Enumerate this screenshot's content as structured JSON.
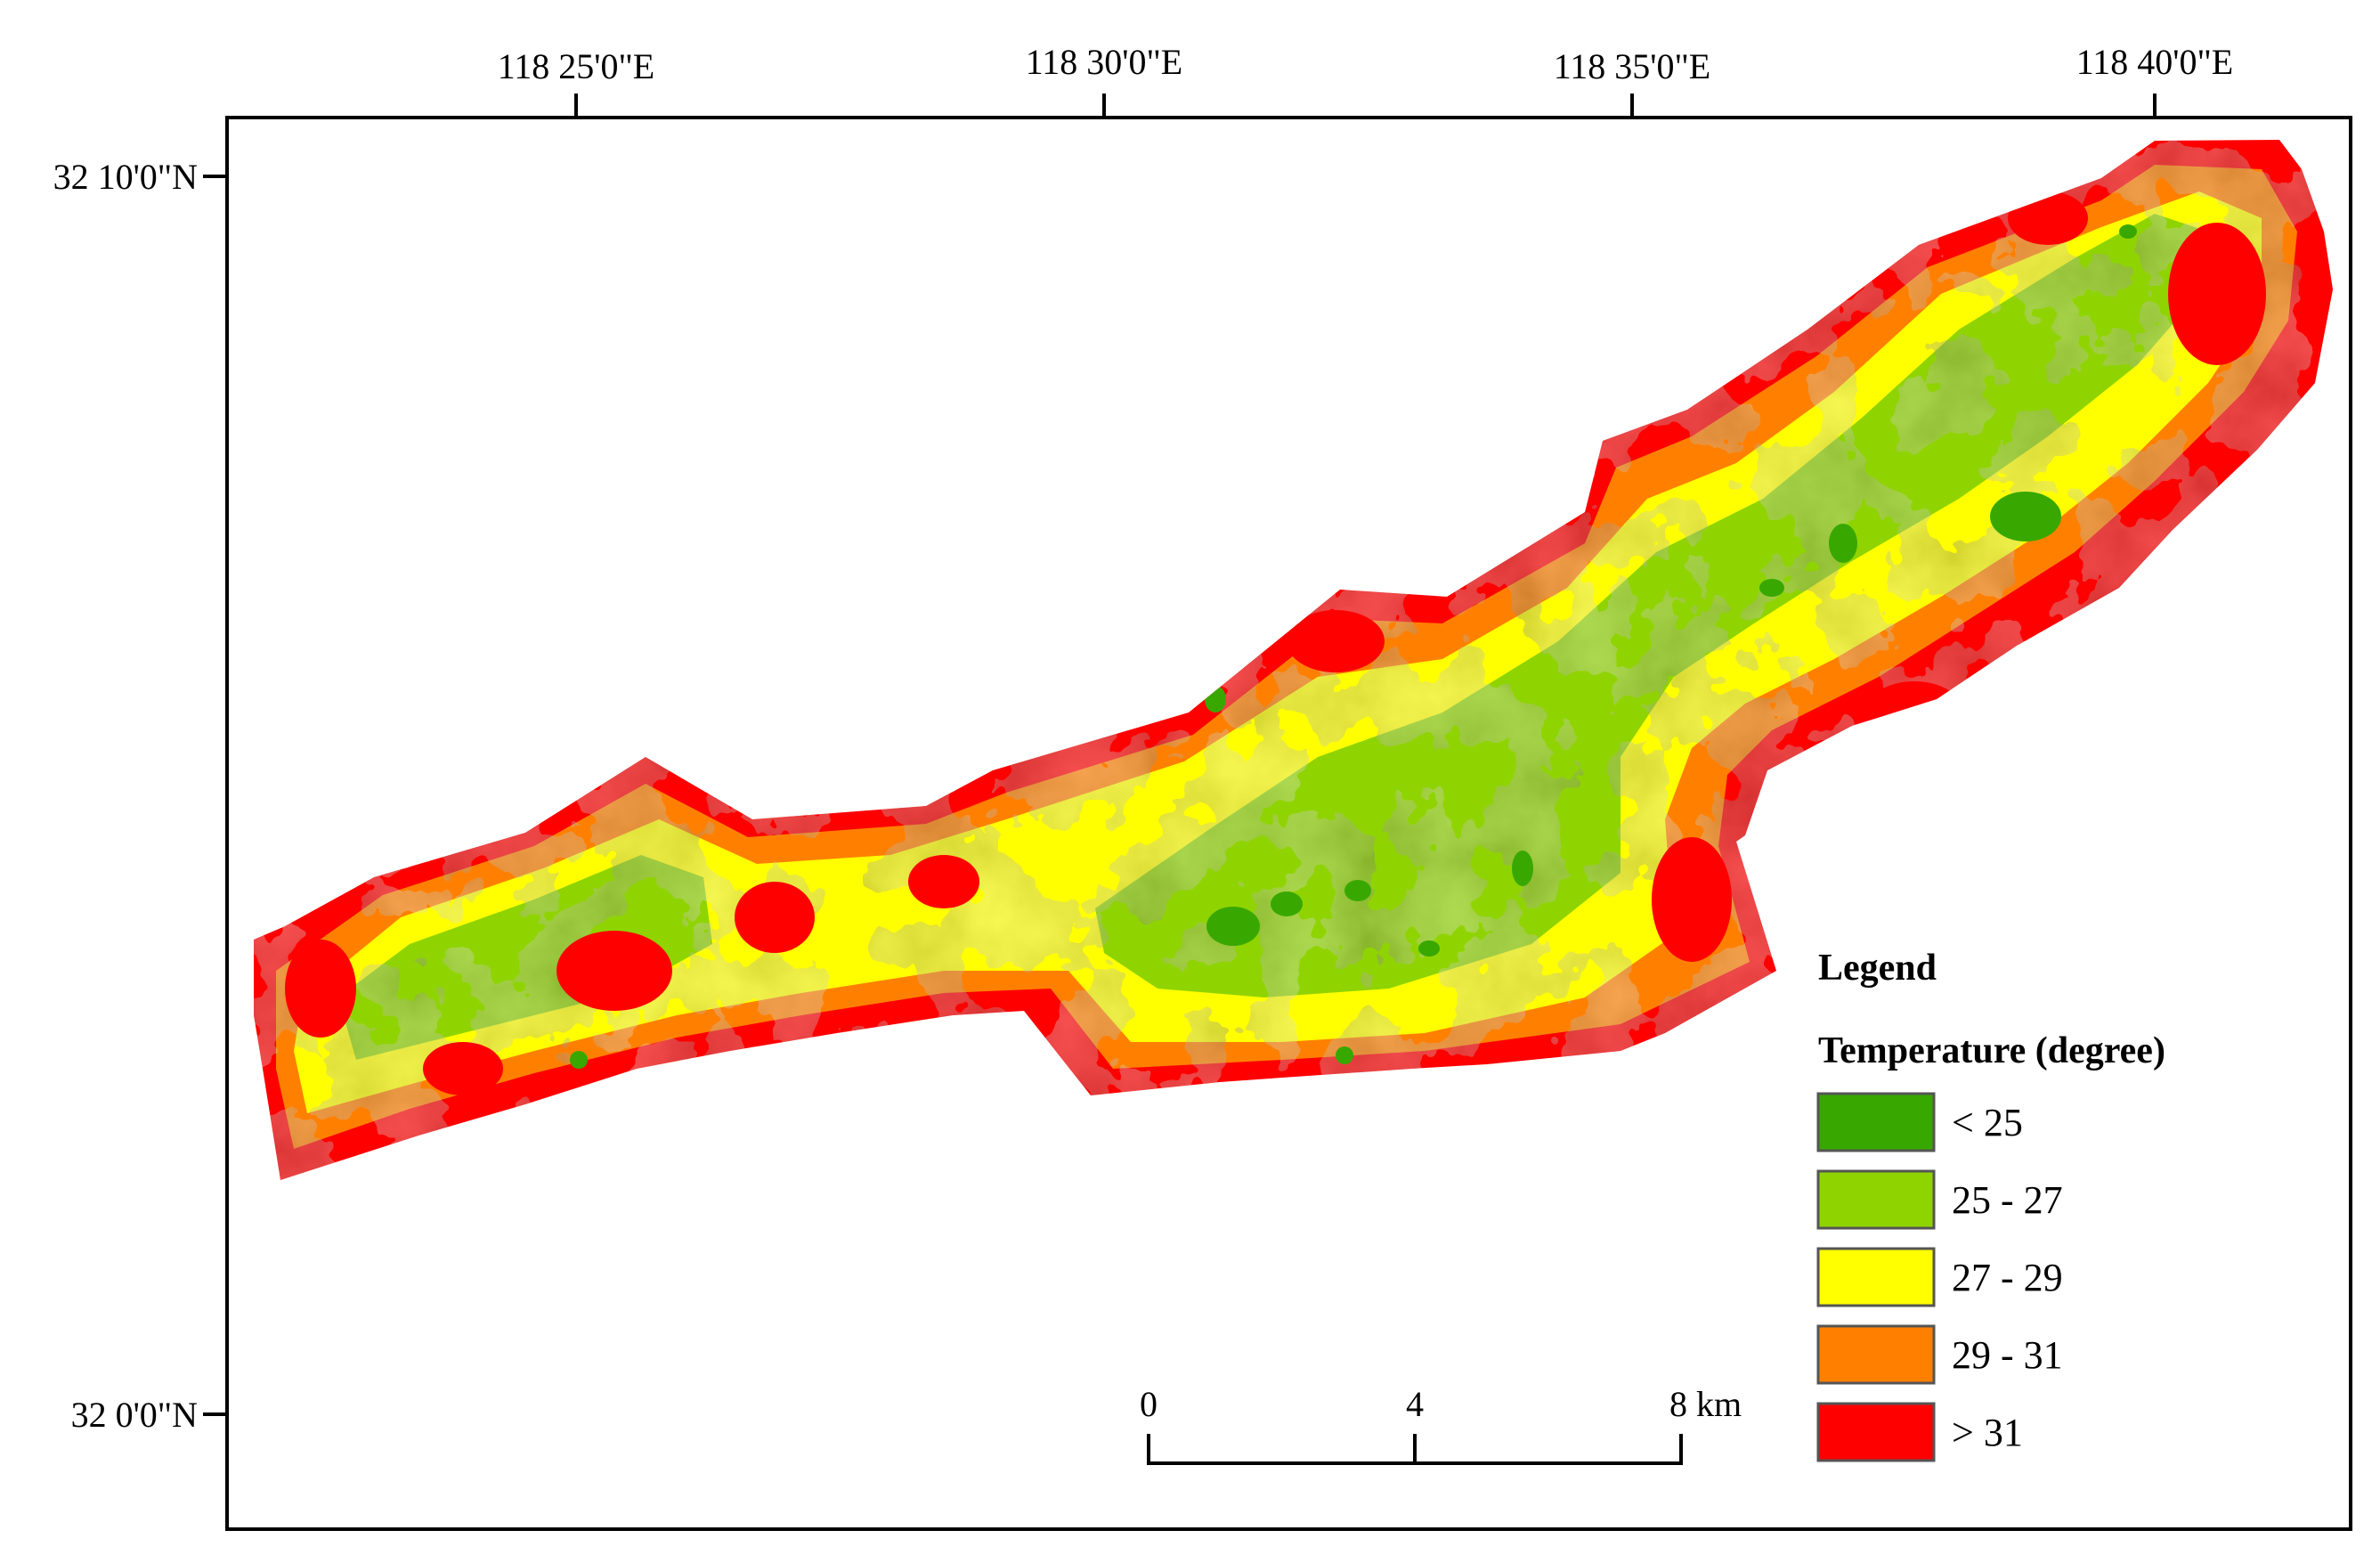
{
  "map": {
    "longitude_labels": [
      "118  25'0\"E",
      "118  30'0\"E",
      "118  35'0\"E",
      "118  40'0\"E"
    ],
    "latitude_labels": [
      "32  10'0\"N",
      "32  0'0\"N"
    ]
  },
  "legend": {
    "title": "Legend",
    "subtitle": "Temperature (degree)",
    "classes": [
      {
        "label": "< 25",
        "color": "#38a800"
      },
      {
        "label": "25 - 27",
        "color": "#8fd400"
      },
      {
        "label": "27 - 29",
        "color": "#ffff00"
      },
      {
        "label": "29 - 31",
        "color": "#ff8000"
      },
      {
        "label": "> 31",
        "color": "#ff0000"
      }
    ]
  },
  "scale_bar": {
    "labels": [
      "0",
      "4",
      "8 km"
    ]
  }
}
